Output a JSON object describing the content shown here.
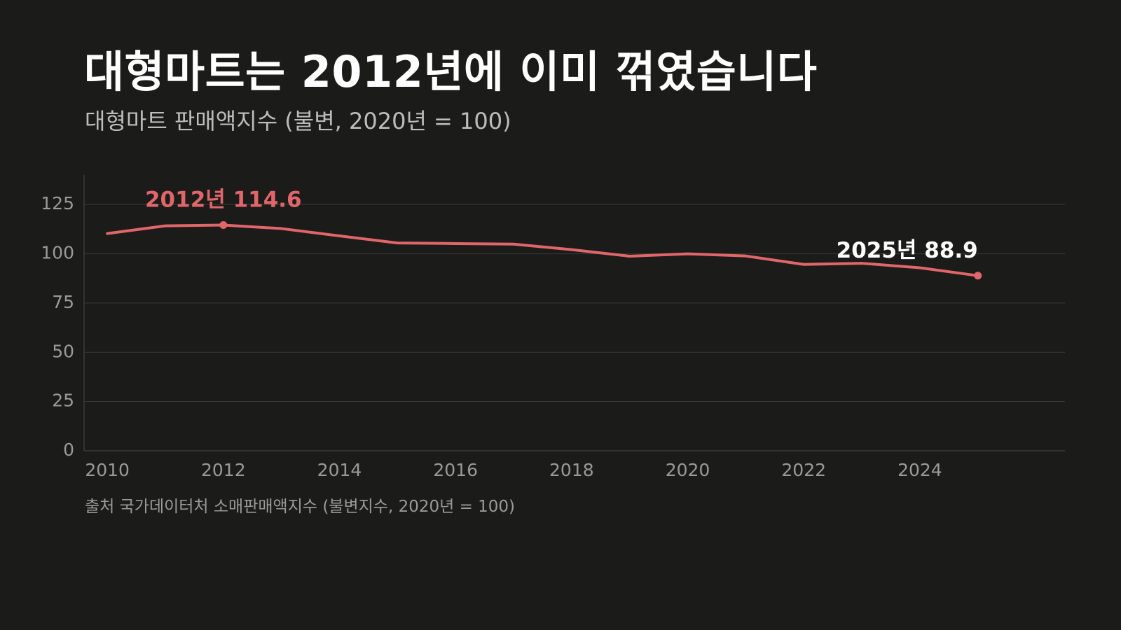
{
  "title": "대형마트는 2012년에 이미 꺾였습니다",
  "subtitle": "대형마트 판매액지수 (불변, 2020년 = 100)",
  "source": "출처 국가데이터처 소매판매액지수 (불변지수, 2020년 = 100)",
  "colors": {
    "background": "#1b1b1a",
    "line": "#e0666a",
    "grid": "#3a3a38",
    "axis_text": "#9a9a9a",
    "highlight_label": "#e0666a",
    "end_label": "#ffffff"
  },
  "chart_data": {
    "type": "line",
    "x": [
      2010,
      2011,
      2012,
      2013,
      2014,
      2015,
      2016,
      2017,
      2018,
      2019,
      2020,
      2021,
      2022,
      2023,
      2024,
      2025
    ],
    "series": [
      {
        "values": [
          110.3,
          114.2,
          114.6,
          112.8,
          109.1,
          105.5,
          105.2,
          104.9,
          102.1,
          98.8,
          100.0,
          98.9,
          94.6,
          95.2,
          92.9,
          88.9
        ]
      }
    ],
    "xlim": [
      2009.6,
      2026.5
    ],
    "ylim": [
      0,
      140
    ],
    "x_ticks": [
      2010,
      2012,
      2014,
      2016,
      2018,
      2020,
      2022,
      2024
    ],
    "x_tick_labels": [
      "2010",
      "2012",
      "2014",
      "2016",
      "2018",
      "2020",
      "2022",
      "2024"
    ],
    "y_ticks": [
      0,
      25,
      50,
      75,
      100,
      125
    ],
    "y_tick_labels": [
      "0",
      "25",
      "50",
      "75",
      "100",
      "125"
    ],
    "grid": true,
    "annotations": [
      {
        "x": 2012,
        "y": 114.6,
        "text": "2012년 114.6",
        "style": "highlight"
      },
      {
        "x": 2025,
        "y": 88.9,
        "text": "2025년 88.9",
        "style": "end"
      }
    ]
  }
}
